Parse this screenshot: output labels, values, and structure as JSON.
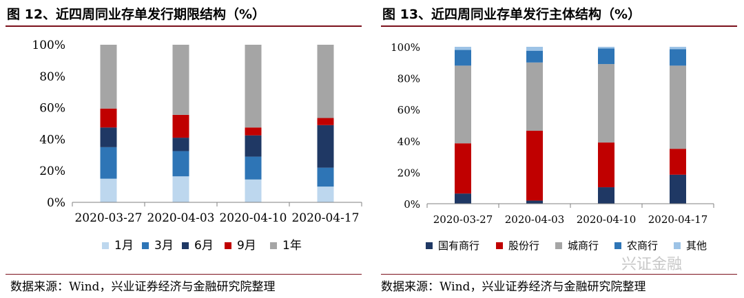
{
  "left": {
    "title": "图 12、近四周同业存单发行期限结构（%）",
    "source": "数据来源：Wind，兴业证券经济与金融研究院整理"
  },
  "right": {
    "title": "图 13、近四周同业存单发行主体结构（%）",
    "source": "数据来源：Wind，兴业证券经济与金融研究院整理"
  },
  "watermark": "兴证金融",
  "chart_data": [
    {
      "type": "bar",
      "stacked": true,
      "categories": [
        "2020-03-27",
        "2020-04-03",
        "2020-04-10",
        "2020-04-17"
      ],
      "yticks": [
        "0%",
        "20%",
        "40%",
        "60%",
        "80%",
        "100%"
      ],
      "ylim": [
        0,
        100
      ],
      "legend_position": "bottom",
      "series": [
        {
          "name": "1月",
          "color": "#bdd7ee",
          "values": [
            15,
            16.5,
            14.5,
            10
          ]
        },
        {
          "name": "3月",
          "color": "#2e75b6",
          "values": [
            20,
            16,
            14.5,
            12
          ]
        },
        {
          "name": "6月",
          "color": "#1f3864",
          "values": [
            12.5,
            8.5,
            13.5,
            27
          ]
        },
        {
          "name": "9月",
          "color": "#c00000",
          "values": [
            12,
            14.5,
            5,
            4.5
          ]
        },
        {
          "name": "1年",
          "color": "#a5a5a5",
          "values": [
            40.5,
            44.5,
            52.5,
            46.5
          ]
        }
      ]
    },
    {
      "type": "bar",
      "stacked": true,
      "categories": [
        "2020-03-27",
        "2020-04-03",
        "2020-04-10",
        "2020-04-17"
      ],
      "yticks": [
        "0%",
        "20%",
        "40%",
        "60%",
        "80%",
        "100%"
      ],
      "ylim": [
        0,
        100
      ],
      "legend_position": "bottom",
      "series": [
        {
          "name": "国有商行",
          "color": "#1f3864",
          "values": [
            6.5,
            2,
            10.5,
            18.5
          ]
        },
        {
          "name": "股份行",
          "color": "#c00000",
          "values": [
            32,
            44.5,
            28.5,
            16.5
          ]
        },
        {
          "name": "城商行",
          "color": "#a5a5a5",
          "values": [
            49.5,
            43.5,
            50,
            53
          ]
        },
        {
          "name": "农商行",
          "color": "#2e75b6",
          "values": [
            10,
            7.5,
            10,
            10.5
          ]
        },
        {
          "name": "其他",
          "color": "#9dc3e6",
          "values": [
            2,
            2.5,
            1,
            1.5
          ]
        }
      ]
    }
  ]
}
